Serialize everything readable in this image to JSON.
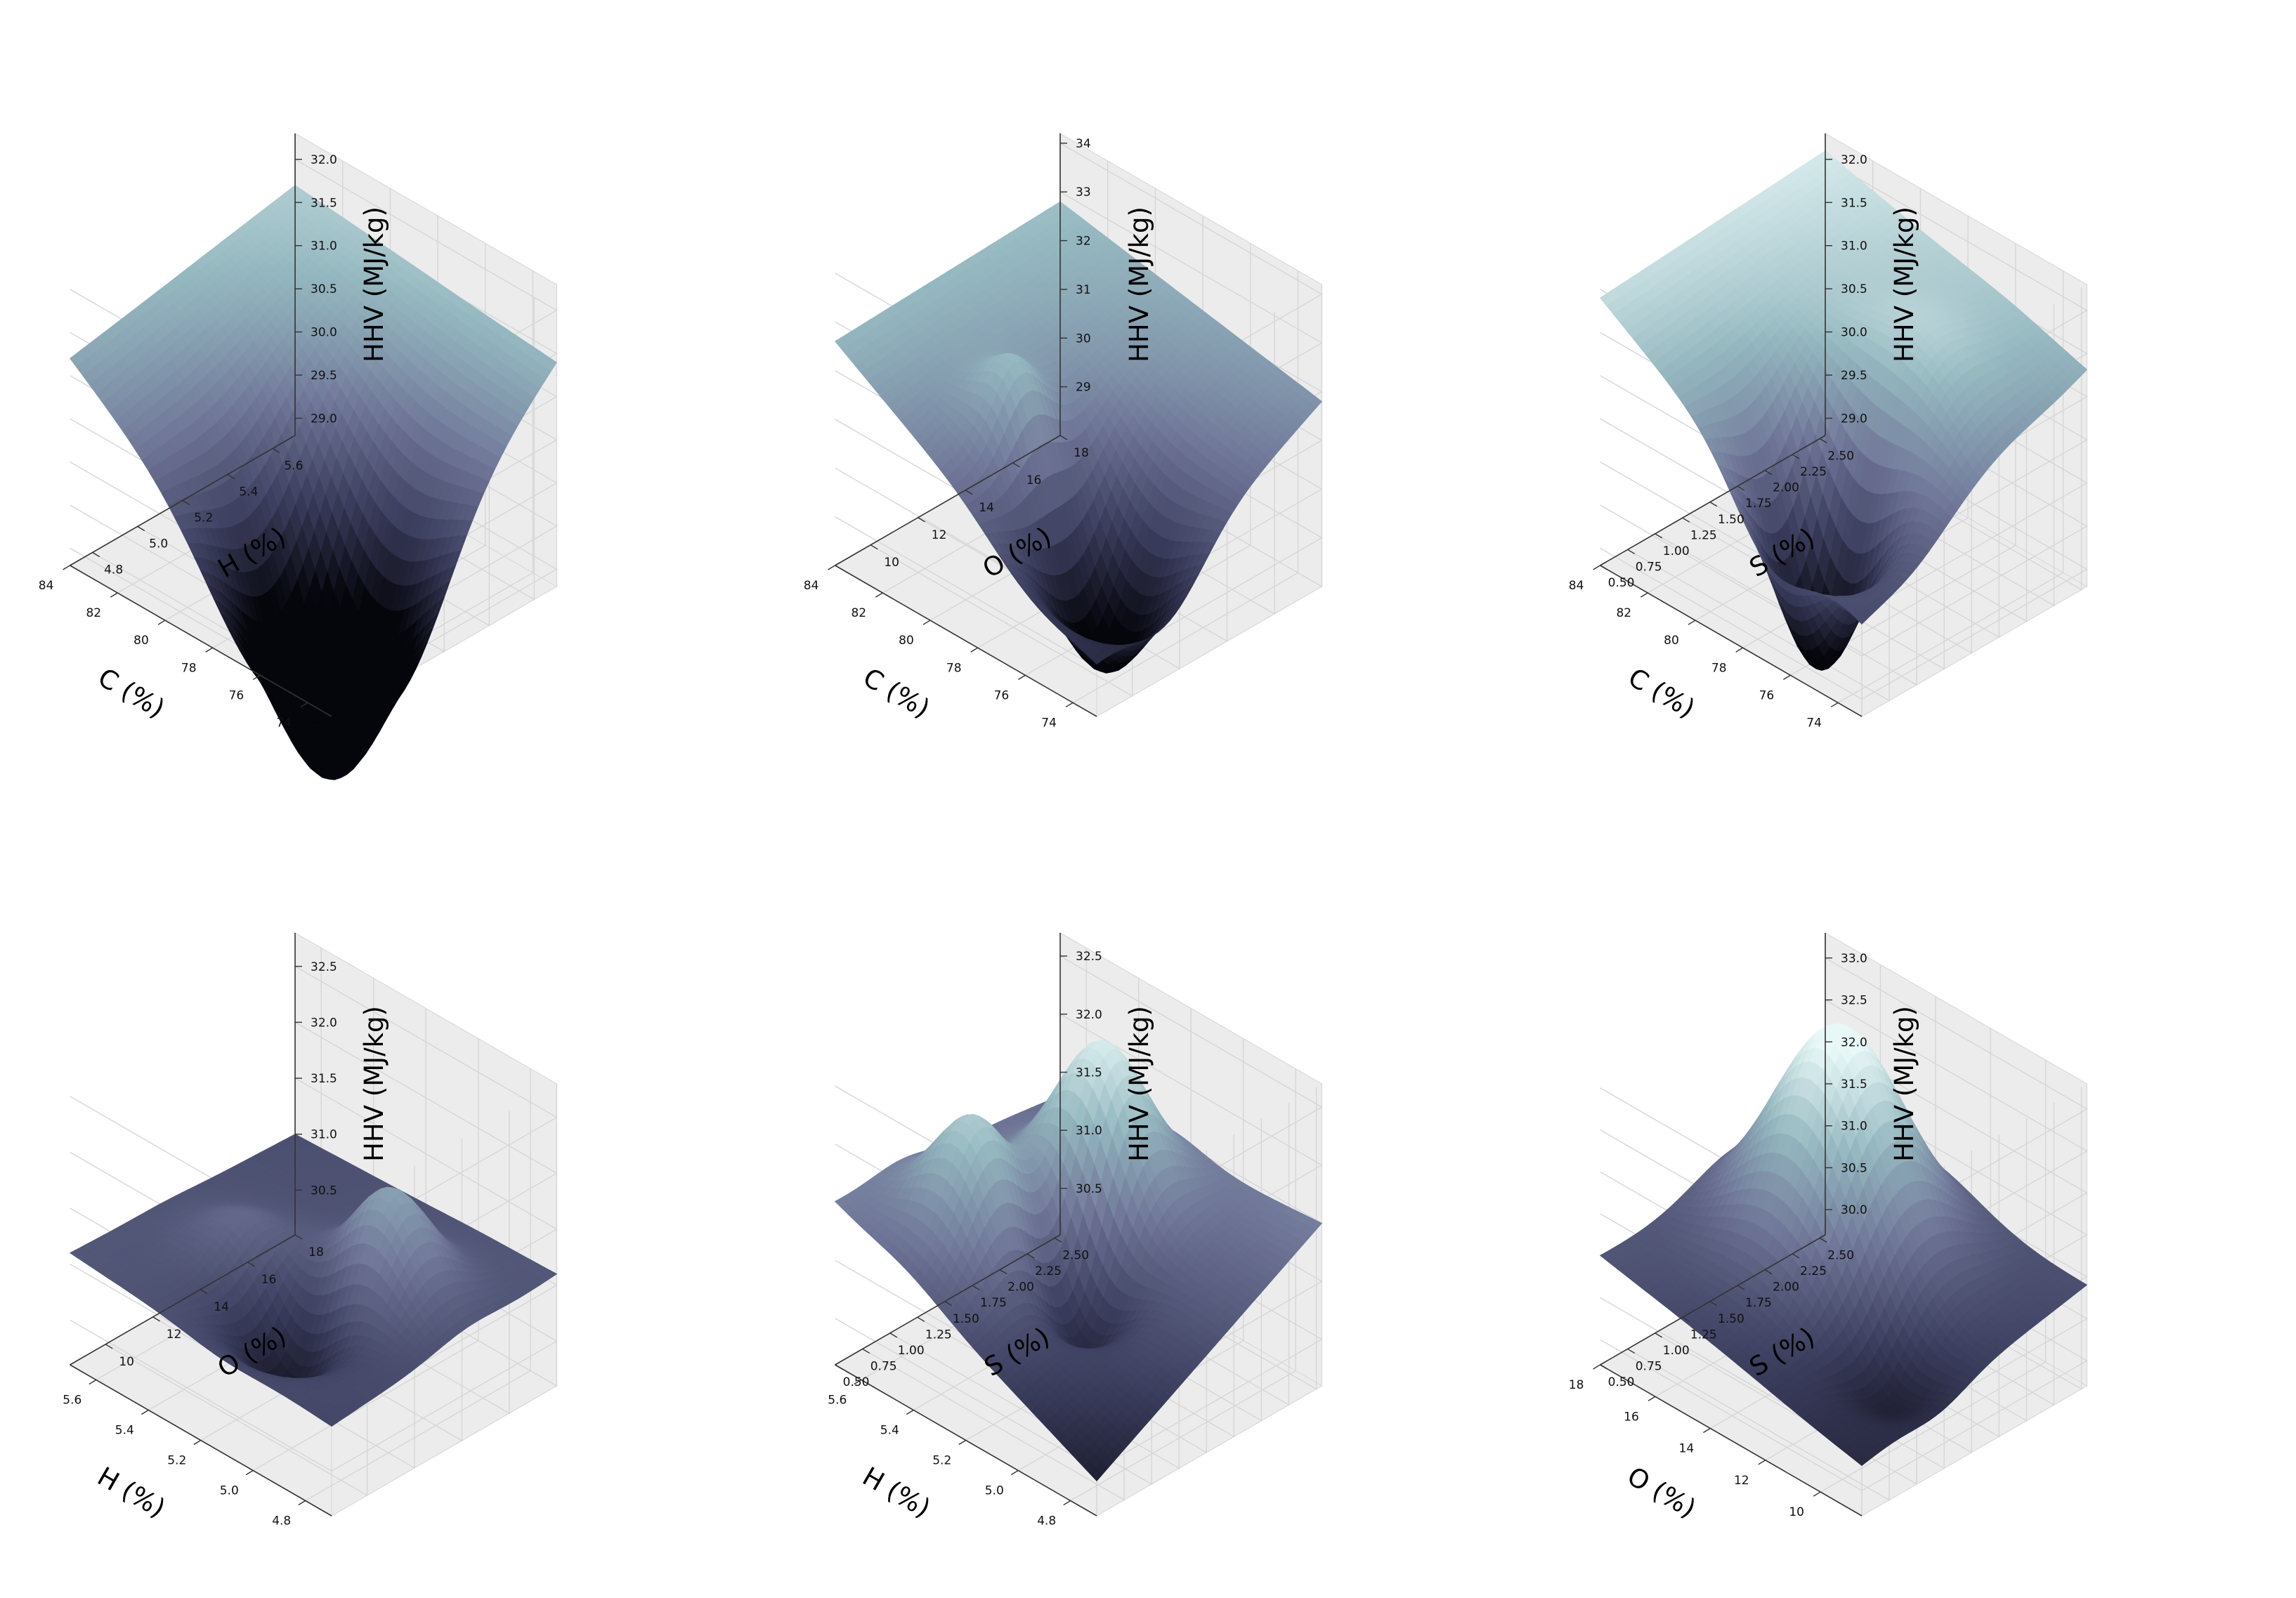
{
  "figure": {
    "colormap": [
      "#05060c",
      "#3a3c5c",
      "#6f7597",
      "#95b8c0",
      "#e8f8f7"
    ],
    "pane_color": "#ececec",
    "grid_color": "#d6d6d6"
  },
  "chart_data": [
    {
      "type": "surface",
      "xlabel": "C (%)",
      "ylabel": "H (%)",
      "zlabel": "HHV (MJ/kg)",
      "xlim": [
        73,
        84
      ],
      "ylim": [
        4.7,
        5.7
      ],
      "zlim": [
        28.8,
        32.3
      ],
      "xticks": [
        "74",
        "76",
        "78",
        "80",
        "82",
        "84"
      ],
      "yticks": [
        "4.8",
        "5.0",
        "5.2",
        "5.4",
        "5.6"
      ],
      "zticks": [
        "29.0",
        "29.5",
        "30.0",
        "30.5",
        "31.0",
        "31.5",
        "32.0"
      ],
      "grid": true,
      "corner_values": {
        "near": 28.9,
        "right": 31.4,
        "back": 31.7,
        "left": 31.2
      },
      "bumps": [
        {
          "x": 0.28,
          "y": 0.32,
          "sigma": 0.2,
          "amp": -2.9
        }
      ]
    },
    {
      "type": "surface",
      "xlabel": "C (%)",
      "ylabel": "O (%)",
      "zlabel": "HHV (MJ/kg)",
      "xlim": [
        73,
        84
      ],
      "ylim": [
        8.5,
        18
      ],
      "zlim": [
        28,
        34.2
      ],
      "xticks": [
        "74",
        "76",
        "78",
        "80",
        "82",
        "84"
      ],
      "yticks": [
        "10",
        "12",
        "14",
        "16",
        "18"
      ],
      "zticks": [
        "29",
        "30",
        "31",
        "32",
        "33",
        "34"
      ],
      "grid": true,
      "corner_values": {
        "near": 29.2,
        "right": 31.8,
        "back": 32.8,
        "left": 32.6
      },
      "bumps": [
        {
          "x": 0.25,
          "y": 0.32,
          "sigma": 0.16,
          "amp": -3.2
        },
        {
          "x": 0.55,
          "y": 0.3,
          "sigma": 0.1,
          "amp": 1.6
        }
      ]
    },
    {
      "type": "surface",
      "xlabel": "C (%)",
      "ylabel": "S (%)",
      "zlabel": "HHV (MJ/kg)",
      "xlim": [
        73,
        84
      ],
      "ylim": [
        0.5,
        2.55
      ],
      "zlim": [
        28.8,
        32.3
      ],
      "xticks": [
        "74",
        "76",
        "78",
        "80",
        "82",
        "84"
      ],
      "yticks": [
        "0.50",
        "0.75",
        "1.00",
        "1.25",
        "1.50",
        "1.75",
        "2.00",
        "2.25",
        "2.50"
      ],
      "zticks": [
        "29.0",
        "29.5",
        "30.0",
        "30.5",
        "31.0",
        "31.5",
        "32.0"
      ],
      "grid": true,
      "corner_values": {
        "near": 29.9,
        "right": 31.3,
        "back": 32.1,
        "left": 31.9
      },
      "bumps": [
        {
          "x": 0.35,
          "y": 0.22,
          "sigma": 0.14,
          "amp": -2.4
        },
        {
          "x": 0.3,
          "y": 0.6,
          "sigma": 0.18,
          "amp": 0.6
        }
      ]
    },
    {
      "type": "surface",
      "xlabel": "H (%)",
      "ylabel": "O (%)",
      "zlabel": "HHV (MJ/kg)",
      "xlim": [
        4.7,
        5.7
      ],
      "ylim": [
        8.5,
        18
      ],
      "zlim": [
        30.1,
        32.8
      ],
      "xticks": [
        "4.8",
        "5.0",
        "5.2",
        "5.4",
        "5.6"
      ],
      "yticks": [
        "10",
        "12",
        "14",
        "16",
        "18"
      ],
      "zticks": [
        "30.5",
        "31.0",
        "31.5",
        "32.0",
        "32.5"
      ],
      "grid": true,
      "corner_values": {
        "near": 30.9,
        "right": 31.1,
        "back": 31.0,
        "left": 31.1
      },
      "bumps": [
        {
          "x": 0.42,
          "y": 0.3,
          "sigma": 0.13,
          "amp": -0.7
        },
        {
          "x": 0.3,
          "y": 0.6,
          "sigma": 0.13,
          "amp": 0.9
        },
        {
          "x": 0.7,
          "y": 0.42,
          "sigma": 0.12,
          "amp": 0.3
        }
      ]
    },
    {
      "type": "surface",
      "xlabel": "H (%)",
      "ylabel": "S (%)",
      "zlabel": "HHV (MJ/kg)",
      "xlim": [
        4.7,
        5.7
      ],
      "ylim": [
        0.5,
        2.55
      ],
      "zlim": [
        30.1,
        32.7
      ],
      "xticks": [
        "4.8",
        "5.0",
        "5.2",
        "5.4",
        "5.6"
      ],
      "yticks": [
        "0.50",
        "0.75",
        "1.00",
        "1.25",
        "1.50",
        "1.75",
        "2.00",
        "2.25",
        "2.50"
      ],
      "zticks": [
        "30.5",
        "31.0",
        "31.5",
        "32.0",
        "32.5"
      ],
      "grid": true,
      "corner_values": {
        "near": 30.4,
        "right": 31.5,
        "back": 31.3,
        "left": 31.5
      },
      "bumps": [
        {
          "x": 0.6,
          "y": 0.72,
          "sigma": 0.14,
          "amp": 1.3
        },
        {
          "x": 0.72,
          "y": 0.3,
          "sigma": 0.13,
          "amp": 1.0
        },
        {
          "x": 0.45,
          "y": 0.45,
          "sigma": 0.12,
          "amp": -0.7
        }
      ]
    },
    {
      "type": "surface",
      "xlabel": "O (%)",
      "ylabel": "S (%)",
      "zlabel": "HHV (MJ/kg)",
      "xlim": [
        8.5,
        18
      ],
      "ylim": [
        0.5,
        2.55
      ],
      "zlim": [
        29.7,
        33.3
      ],
      "xticks": [
        "10",
        "12",
        "14",
        "16",
        "18"
      ],
      "yticks": [
        "0.50",
        "0.75",
        "1.00",
        "1.25",
        "1.50",
        "1.75",
        "2.00",
        "2.25",
        "2.50"
      ],
      "zticks": [
        "30.0",
        "30.5",
        "31.0",
        "31.5",
        "32.0",
        "32.5",
        "33.0"
      ],
      "grid": true,
      "corner_values": {
        "near": 30.3,
        "right": 30.9,
        "back": 30.9,
        "left": 31.0
      },
      "bumps": [
        {
          "x": 0.62,
          "y": 0.62,
          "sigma": 0.2,
          "amp": 2.6
        },
        {
          "x": 0.2,
          "y": 0.35,
          "sigma": 0.12,
          "amp": -0.5
        }
      ]
    }
  ]
}
